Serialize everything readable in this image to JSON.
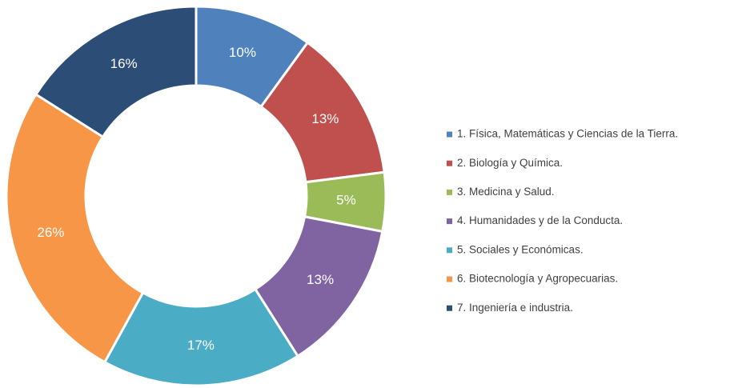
{
  "chart_data": {
    "type": "donut",
    "categories": [
      "1. Física, Matemáticas y Ciencias de la Tierra.",
      "2. Biología y Química.",
      "3. Medicina y Salud.",
      "4. Humanidades y de la Conducta.",
      "5. Sociales y Económicas.",
      "6. Biotecnología y Agropecuarias.",
      "7. Ingeniería e industria."
    ],
    "values": [
      10,
      13,
      5,
      13,
      17,
      26,
      16
    ],
    "value_labels": [
      "10%",
      "13%",
      "5%",
      "13%",
      "17%",
      "26%",
      "16%"
    ],
    "colors": [
      "#4f81bd",
      "#c0504d",
      "#9bbb59",
      "#8064a2",
      "#4bacc6",
      "#f79646",
      "#2c4d75"
    ],
    "legend": "right"
  }
}
